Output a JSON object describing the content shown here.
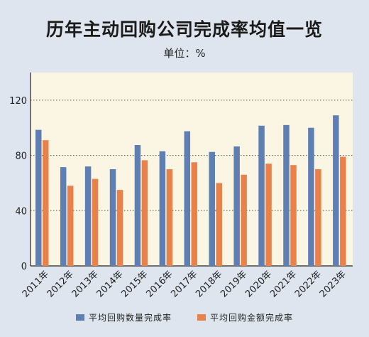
{
  "title": "历年主动回购公司完成率均值一览",
  "unit_label": "单位：%",
  "colors": {
    "quantity": "#5f7fb3",
    "amount": "#e8824a",
    "plot_bg": "#fbf6e4",
    "page_bg": "#dfe5ee"
  },
  "chart_data": {
    "type": "bar",
    "categories": [
      "2011年",
      "2012年",
      "2013年",
      "2014年",
      "2015年",
      "2016年",
      "2017年",
      "2018年",
      "2019年",
      "2020年",
      "2021年",
      "2022年",
      "2023年"
    ],
    "series": [
      {
        "name": "平均回购数量完成率",
        "values": [
          98.5,
          71.5,
          72,
          70,
          87.5,
          83,
          97.5,
          82.5,
          86.5,
          101.5,
          102,
          100,
          109
        ]
      },
      {
        "name": "平均回购金额完成率",
        "values": [
          91,
          58,
          63,
          55,
          76.5,
          70,
          75,
          60,
          66,
          74,
          73,
          70,
          79
        ]
      }
    ],
    "yticks": [
      0,
      40,
      80,
      120
    ],
    "ylim": [
      0,
      140
    ],
    "grid": true,
    "legend_position": "bottom"
  }
}
